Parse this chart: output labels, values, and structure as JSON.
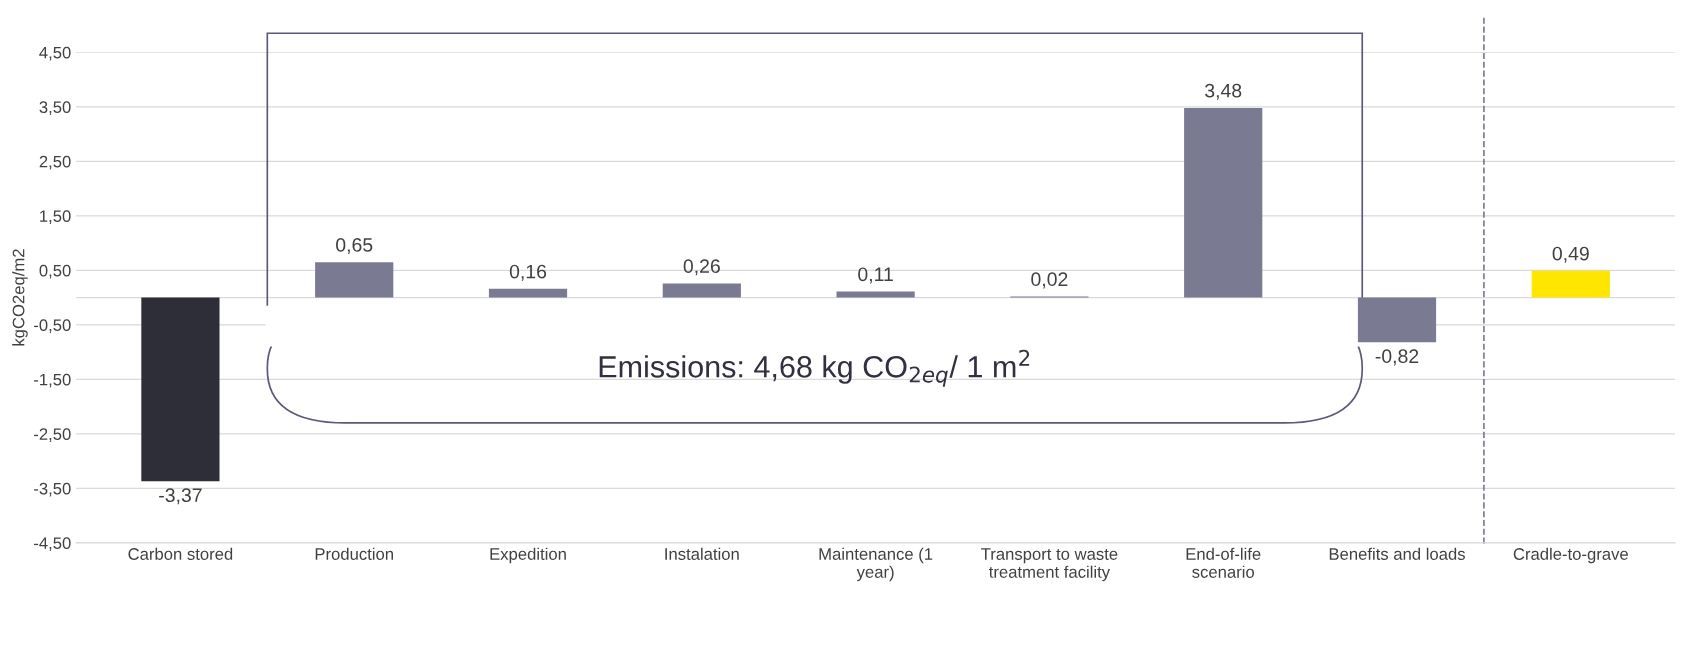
{
  "chart_data": {
    "type": "bar",
    "ylabel": "kgCO2eq/m2",
    "categories": [
      "Carbon stored",
      "Production",
      "Expedition",
      "Instalation",
      "Maintenance (1 year)",
      "Transport to waste treatment facility",
      "End-of-life scenario",
      "Benefits and loads",
      "Cradle-to-grave"
    ],
    "values": [
      -3.37,
      0.65,
      0.16,
      0.26,
      0.11,
      0.02,
      3.48,
      -0.82,
      0.49
    ],
    "value_labels": [
      "-3,37",
      "0,65",
      "0,16",
      "0,26",
      "0,11",
      "0,02",
      "3,48",
      "-0,82",
      "0,49"
    ],
    "colors": [
      "#2e2e38",
      "#7a7a92",
      "#7a7a92",
      "#7a7a92",
      "#7a7a92",
      "#7a7a92",
      "#7a7a92",
      "#7a7a92",
      "#ffe600"
    ],
    "ylim": [
      -4.5,
      4.5
    ],
    "yticks": [
      {
        "value": -4.5,
        "label": "-4,50"
      },
      {
        "value": -3.5,
        "label": "-3,50"
      },
      {
        "value": -2.5,
        "label": "-2,50"
      },
      {
        "value": -1.5,
        "label": "-1,50"
      },
      {
        "value": -0.5,
        "label": "-0,50"
      },
      {
        "value": 0.5,
        "label": "0,50"
      },
      {
        "value": 1.5,
        "label": "1,50"
      },
      {
        "value": 2.5,
        "label": "2,50"
      },
      {
        "value": 3.5,
        "label": "3,50"
      },
      {
        "value": 4.5,
        "label": "4,50"
      }
    ],
    "grid": "y",
    "annotations": [
      "Emissions: 4,68 kg CO$_{2eq}$/ 1 m$^{2}$"
    ]
  }
}
